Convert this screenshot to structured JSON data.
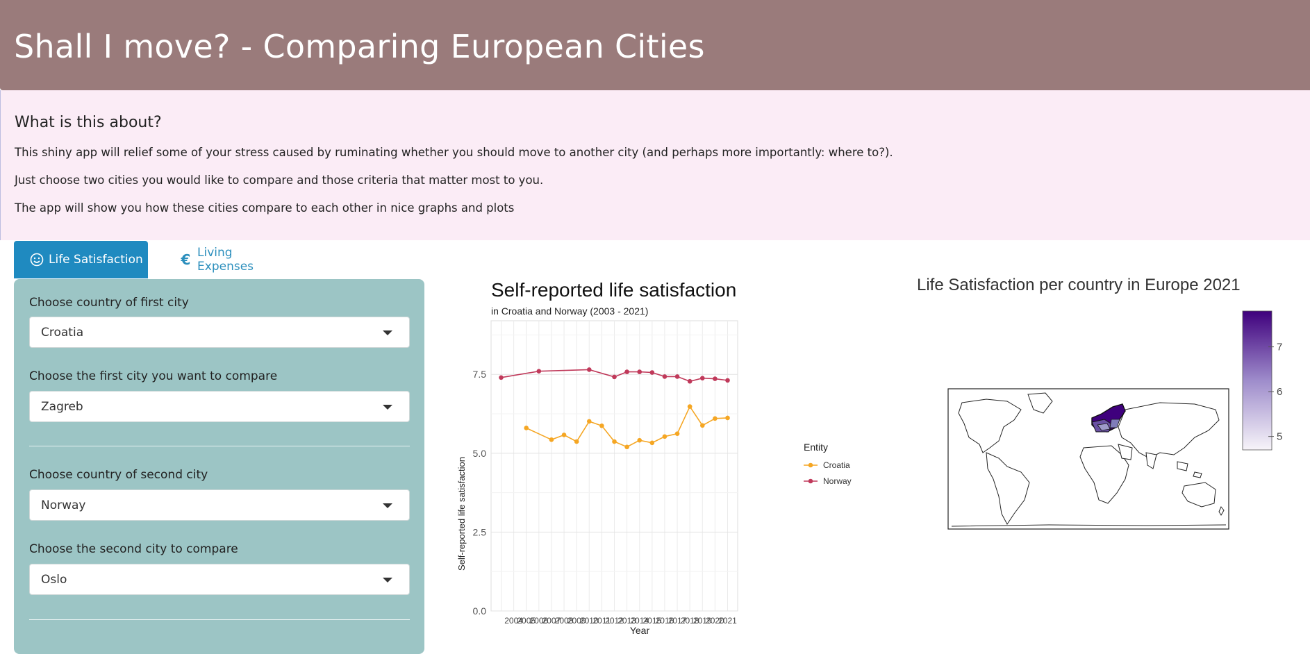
{
  "header": {
    "title": "Shall I move? - Comparing European Cities"
  },
  "about": {
    "heading": "What is this about?",
    "p1": "This shiny app will relief some of your stress caused by ruminating whether you should move to another city (and perhaps more importantly: where to?).",
    "p2": "Just choose two cities you would like to compare and those criteria that matter most to you.",
    "p3": "The app will show you how these cities compare to each other in nice graphs and plots"
  },
  "tabs": [
    {
      "label": "Life Satisfaction",
      "icon": "smile-icon",
      "active": true
    },
    {
      "label": "Living Expenses",
      "icon": "euro-icon",
      "active": false
    }
  ],
  "sidebar": {
    "country1_label": "Choose country of first city",
    "country1_value": "Croatia",
    "city1_label": "Choose the first city you want to compare",
    "city1_value": "Zagreb",
    "country2_label": "Choose country of second city",
    "country2_value": "Norway",
    "city2_label": "Choose the second city to compare",
    "city2_value": "Oslo"
  },
  "chart_data": [
    {
      "type": "line",
      "title": "Self-reported life satisfaction",
      "subtitle": "in Croatia and Norway (2003 - 2021)",
      "xlabel": "Year",
      "ylabel": "Self-reported life satisfaction",
      "ylim": [
        0,
        9.2
      ],
      "yticks": [
        0.0,
        2.5,
        5.0,
        7.5
      ],
      "ytick_labels": [
        "0.0",
        "2.5",
        "5.0",
        "7.5"
      ],
      "xticks": [
        2004,
        2005,
        2006,
        2007,
        2008,
        2009,
        2010,
        2011,
        2012,
        2013,
        2014,
        2015,
        2016,
        2017,
        2018,
        2019,
        2020,
        2021
      ],
      "legend_title": "Entity",
      "legend_position": "right",
      "grid": true,
      "series": [
        {
          "name": "Croatia",
          "color": "#f5a623",
          "x": [
            2005,
            2007,
            2008,
            2009,
            2010,
            2011,
            2012,
            2013,
            2014,
            2015,
            2016,
            2017,
            2018,
            2019,
            2020,
            2021
          ],
          "y": [
            5.8,
            5.43,
            5.58,
            5.37,
            6.01,
            5.87,
            5.37,
            5.2,
            5.41,
            5.33,
            5.53,
            5.62,
            6.48,
            5.88,
            6.1,
            6.12
          ]
        },
        {
          "name": "Norway",
          "color": "#c0395a",
          "x": [
            2003,
            2006,
            2010,
            2012,
            2013,
            2014,
            2015,
            2016,
            2017,
            2018,
            2019,
            2020,
            2021
          ],
          "y": [
            7.4,
            7.6,
            7.65,
            7.42,
            7.58,
            7.58,
            7.56,
            7.43,
            7.43,
            7.28,
            7.38,
            7.36,
            7.31
          ]
        }
      ]
    },
    {
      "type": "heatmap",
      "title": "Life Satisfaction per country in Europe 2021",
      "colorbar_ticks": [
        5,
        6,
        7
      ],
      "colorbar_range": [
        4.7,
        7.8
      ],
      "colorbar_colors": [
        "#f7f4f9",
        "#9e8ccb",
        "#3f007d"
      ]
    }
  ]
}
